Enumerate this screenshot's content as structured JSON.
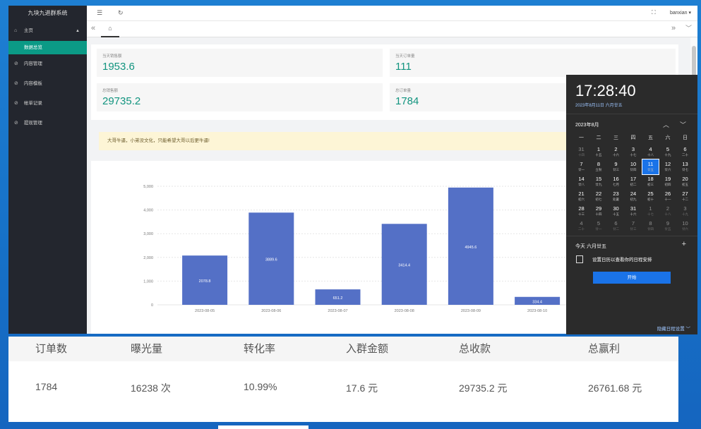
{
  "sidebar": {
    "brand": "九块九进群系统",
    "items": [
      {
        "label": "主页",
        "icon": "home-icon"
      },
      {
        "label": "数据总览",
        "sub": true
      },
      {
        "label": "内容管理",
        "icon": "circle-check-icon"
      },
      {
        "label": "内容模板",
        "icon": "circle-check-icon"
      },
      {
        "label": "帐单记录",
        "icon": "circle-check-icon"
      },
      {
        "label": "提现管理",
        "icon": "circle-check-icon"
      }
    ]
  },
  "topbar": {
    "user": "banxian",
    "menu_icon": "☰",
    "refresh_icon": "↻",
    "fullscreen_icon": "⛶"
  },
  "tabs": {
    "prev": "«",
    "next": "»",
    "more": "﹀"
  },
  "stats": [
    {
      "label": "当天销售额",
      "value": "1953.6"
    },
    {
      "label": "当天订单量",
      "value": "111"
    },
    {
      "label": "总销售额",
      "value": "29735.2"
    },
    {
      "label": "总订单量",
      "value": "1784"
    }
  ],
  "notice": "大哥牛逼，小弟没文化，只能希望大哥以后更牛逼!",
  "chart_data": {
    "type": "bar",
    "categories": [
      "2023-08-05",
      "2023-08-06",
      "2023-08-07",
      "2023-08-08",
      "2023-08-09",
      "2023-08-10"
    ],
    "values": [
      2078.8,
      3889.6,
      651.2,
      3414.4,
      4945.6,
      334.4
    ],
    "data_labels": [
      "2078.8",
      "3889.6",
      "651.2",
      "3414.4",
      "4945.6",
      "334.4"
    ],
    "ylim": [
      0,
      5000
    ],
    "yticks": [
      "0",
      "1,000",
      "2,000",
      "3,000",
      "4,000",
      "5,000"
    ],
    "color": "#5470c6"
  },
  "calendar": {
    "time": "17:28:40",
    "date": "2023年8月11日 六月廿五",
    "month": "2023年8月",
    "weekdays": [
      "一",
      "二",
      "三",
      "四",
      "五",
      "六",
      "日"
    ],
    "days": [
      [
        [
          "31",
          "十四"
        ],
        [
          "1",
          "十五"
        ],
        [
          "2",
          "十六"
        ],
        [
          "3",
          "十七"
        ],
        [
          "4",
          "十八"
        ],
        [
          "5",
          "十九"
        ],
        [
          "6",
          "二十"
        ]
      ],
      [
        [
          "7",
          "廿一"
        ],
        [
          "8",
          "立秋"
        ],
        [
          "9",
          "廿三"
        ],
        [
          "10",
          "廿四"
        ],
        [
          "11",
          "廿五"
        ],
        [
          "12",
          "廿六"
        ],
        [
          "13",
          "廿七"
        ]
      ],
      [
        [
          "14",
          "廿八"
        ],
        [
          "15",
          "廿九"
        ],
        [
          "16",
          "七月"
        ],
        [
          "17",
          "初二"
        ],
        [
          "18",
          "初三"
        ],
        [
          "19",
          "初四"
        ],
        [
          "20",
          "初五"
        ]
      ],
      [
        [
          "21",
          "初六"
        ],
        [
          "22",
          "初七"
        ],
        [
          "23",
          "处暑"
        ],
        [
          "24",
          "初九"
        ],
        [
          "25",
          "初十"
        ],
        [
          "26",
          "十一"
        ],
        [
          "27",
          "十二"
        ]
      ],
      [
        [
          "28",
          "十三"
        ],
        [
          "29",
          "十四"
        ],
        [
          "30",
          "十五"
        ],
        [
          "31",
          "十六"
        ],
        [
          "1",
          "十七"
        ],
        [
          "2",
          "十八"
        ],
        [
          "3",
          "十九"
        ]
      ],
      [
        [
          "4",
          "二十"
        ],
        [
          "5",
          "廿一"
        ],
        [
          "6",
          "廿二"
        ],
        [
          "7",
          "廿三"
        ],
        [
          "8",
          "廿四"
        ],
        [
          "9",
          "廿五"
        ],
        [
          "10",
          "廿六"
        ]
      ]
    ],
    "today_label": "今天 六月廿五",
    "event_text": "设置日历以查看你的日程安排",
    "start_button": "开始",
    "hide_link": "隐藏日程设置 ﹀"
  },
  "summary": {
    "headers": [
      "订单数",
      "曝光量",
      "转化率",
      "入群金额",
      "总收款",
      "总赢利"
    ],
    "values": [
      "1784",
      "16238 次",
      "10.99%",
      "17.6 元",
      "29735.2 元",
      "26761.68 元"
    ]
  }
}
